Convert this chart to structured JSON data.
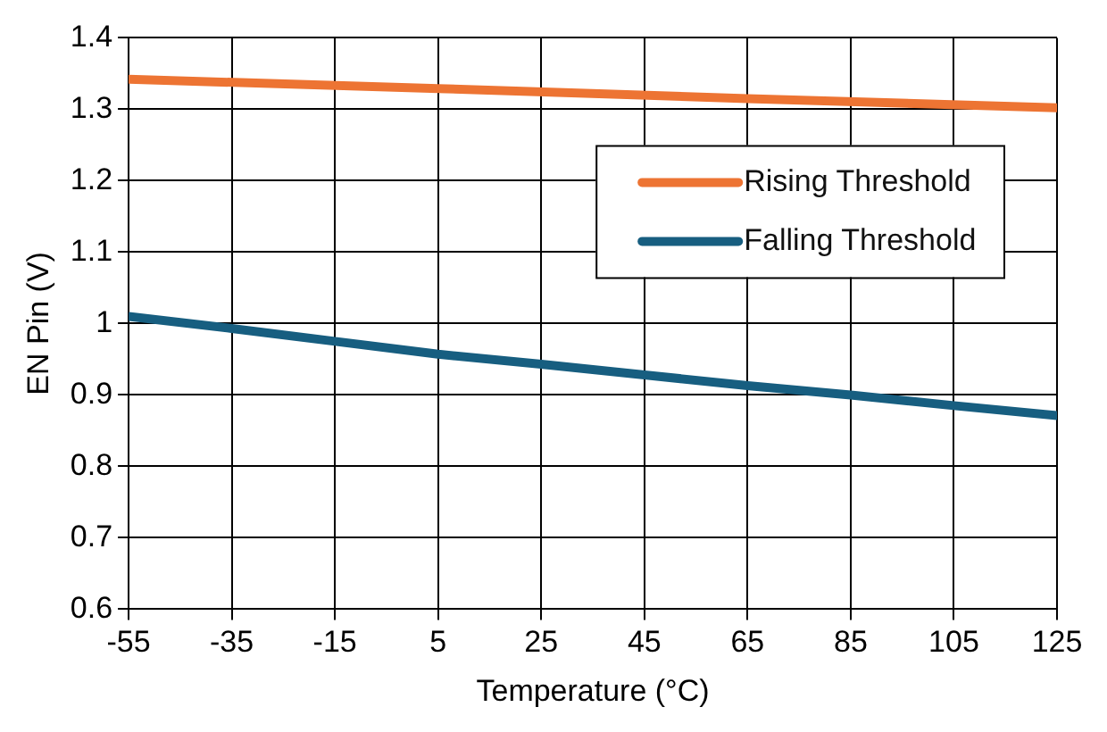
{
  "chart_data": {
    "type": "line",
    "xlabel": "Temperature (°C)",
    "ylabel": "EN Pin (V)",
    "xlim": [
      -55,
      125
    ],
    "xticks": [
      -55,
      -35,
      -15,
      5,
      25,
      45,
      65,
      85,
      105,
      125
    ],
    "ylim": [
      0.6,
      1.4
    ],
    "yticks": [
      0.6,
      0.7,
      0.8,
      0.9,
      1,
      1.1,
      1.2,
      1.3,
      1.4
    ],
    "grid": true,
    "legend": "top right",
    "marker": "none",
    "line_style": "solid",
    "series": [
      {
        "name": "Rising Threshold",
        "color": "#ed7433",
        "x": [
          -55,
          5,
          65,
          125
        ],
        "values": [
          1.342,
          1.329,
          1.315,
          1.302
        ]
      },
      {
        "name": "Falling Threshold",
        "color": "#175e80",
        "x": [
          -55,
          -35,
          -15,
          5,
          25,
          45,
          65,
          85,
          105,
          125
        ],
        "values": [
          1.01,
          0.993,
          0.975,
          0.957,
          0.943,
          0.928,
          0.913,
          0.9,
          0.885,
          0.871
        ]
      }
    ]
  }
}
